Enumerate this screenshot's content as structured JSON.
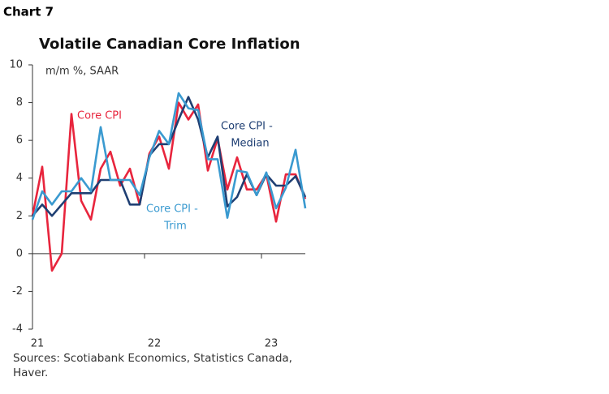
{
  "header": "Chart 7",
  "chart_data": {
    "type": "line",
    "title": "Volatile Canadian Core Inflation",
    "ylabel": "m/m %, SAAR",
    "categories": [
      "21",
      null,
      null,
      null,
      null,
      null,
      null,
      null,
      null,
      null,
      null,
      null,
      "22",
      null,
      null,
      null,
      null,
      null,
      null,
      null,
      null,
      null,
      null,
      null,
      "23",
      null,
      null,
      null,
      null
    ],
    "ylim": [
      -4,
      10
    ],
    "yticks": [
      -4,
      -2,
      0,
      2,
      4,
      6,
      8,
      10
    ],
    "series": [
      {
        "name": [
          "Core CPI"
        ],
        "color": "#e8253d",
        "values": [
          2.0,
          4.6,
          -0.9,
          0,
          7.4,
          2.8,
          1.8,
          4.5,
          5.4,
          3.6,
          4.5,
          2.6,
          5.3,
          6.2,
          4.5,
          8.0,
          7.1,
          7.9,
          4.4,
          6.1,
          3.4,
          5.1,
          3.4,
          3.4,
          4.2,
          1.7,
          4.2,
          4.2,
          2.9
        ]
      },
      {
        "name": [
          "Core CPI -",
          "Median"
        ],
        "color": "#1f3f73",
        "values": [
          2.0,
          2.6,
          2.0,
          2.6,
          3.2,
          3.2,
          3.2,
          3.9,
          3.9,
          3.9,
          2.6,
          2.6,
          5.2,
          5.8,
          5.8,
          7.1,
          8.3,
          7.1,
          5.1,
          6.2,
          2.5,
          3.0,
          4.2,
          3.1,
          4.2,
          3.6,
          3.6,
          4.1,
          3.0
        ]
      },
      {
        "name": [
          "Core CPI -",
          "Trim"
        ],
        "color": "#3a9ad0",
        "values": [
          1.8,
          3.3,
          2.6,
          3.3,
          3.3,
          4.0,
          3.3,
          6.7,
          3.9,
          3.9,
          3.9,
          3.1,
          5.1,
          6.5,
          5.8,
          8.5,
          7.7,
          7.6,
          5.0,
          5.0,
          1.9,
          4.4,
          4.3,
          3.1,
          4.3,
          2.4,
          3.5,
          5.5,
          2.4
        ]
      }
    ]
  },
  "source": "Sources: Scotiabank Economics, Statistics Canada, Haver."
}
